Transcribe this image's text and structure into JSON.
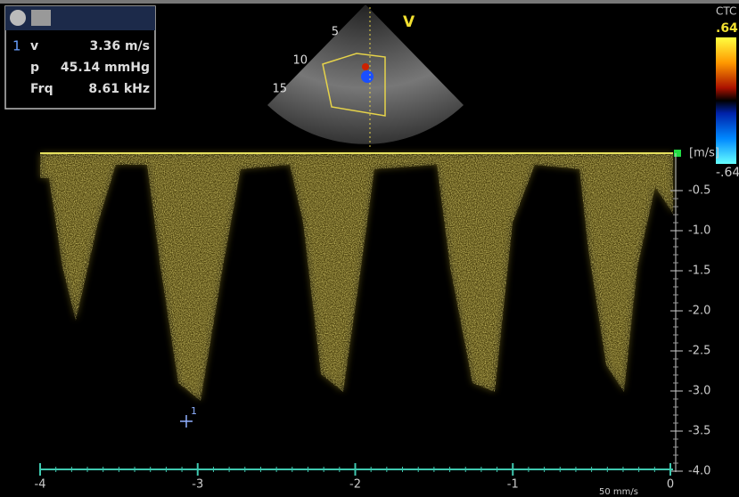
{
  "measurements": {
    "index": "1",
    "rows": [
      {
        "label": "v",
        "value": "3.36 m/s"
      },
      {
        "label": "p",
        "value": "45.14 mmHg"
      },
      {
        "label": "Frq",
        "value": "8.61 kHz"
      }
    ]
  },
  "probe_view": {
    "label": "V",
    "depth_marks": [
      "5",
      "10",
      "15"
    ]
  },
  "color_bar": {
    "label": "CTC",
    "top": ".64",
    "bottom": "-.64"
  },
  "velocity_axis": {
    "unit": "[m/s]",
    "ticks": [
      "-0.5",
      "-1.0",
      "-1.5",
      "-2.0",
      "-2.5",
      "-3.0",
      "-3.5",
      "-4.0"
    ]
  },
  "time_axis": {
    "ticks": [
      "-4",
      "-3",
      "-2",
      "-1",
      "0"
    ],
    "sweep": "50 mm/s"
  },
  "cursor": {
    "label": "1"
  }
}
